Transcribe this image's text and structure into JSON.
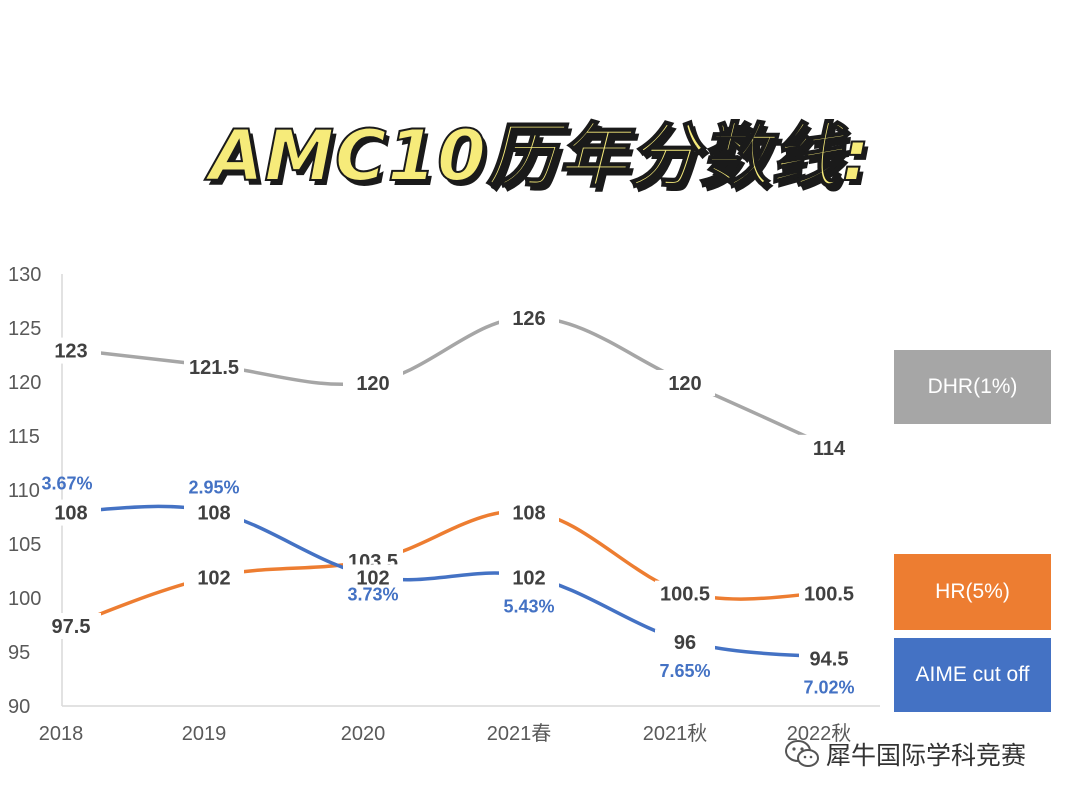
{
  "title": "AMC10历年分数线:",
  "watermark": "犀牛国际学科竞赛",
  "chart_data": {
    "type": "line",
    "categories": [
      "2018",
      "2019",
      "2020",
      "2021春",
      "2021秋",
      "2022秋"
    ],
    "ylim": [
      90,
      130
    ],
    "yticks": [
      90,
      95,
      100,
      105,
      110,
      115,
      120,
      125,
      130
    ],
    "grid": false,
    "legend_position": "right",
    "series": [
      {
        "name": "DHR(1%)",
        "color": "#a6a6a6",
        "values": [
          123,
          121.5,
          120,
          126,
          120,
          114
        ],
        "labels": [
          "123",
          "121.5",
          "120",
          "126",
          "120",
          "114"
        ]
      },
      {
        "name": "HR(5%)",
        "color": "#ed7d31",
        "values": [
          97.5,
          102,
          103.5,
          108,
          100.5,
          100.5
        ],
        "labels": [
          "97.5",
          "102",
          "103.5",
          "108",
          "100.5",
          "100.5"
        ]
      },
      {
        "name": "AIME cut off",
        "color": "#4472c4",
        "values": [
          108,
          108,
          102,
          102,
          96,
          94.5
        ],
        "labels": [
          "108",
          "108",
          "102",
          "102",
          "96",
          "94.5"
        ],
        "annotations": [
          "3.67%",
          "2.95%",
          "3.73%",
          "5.43%",
          "7.65%",
          "7.02%"
        ]
      }
    ]
  }
}
